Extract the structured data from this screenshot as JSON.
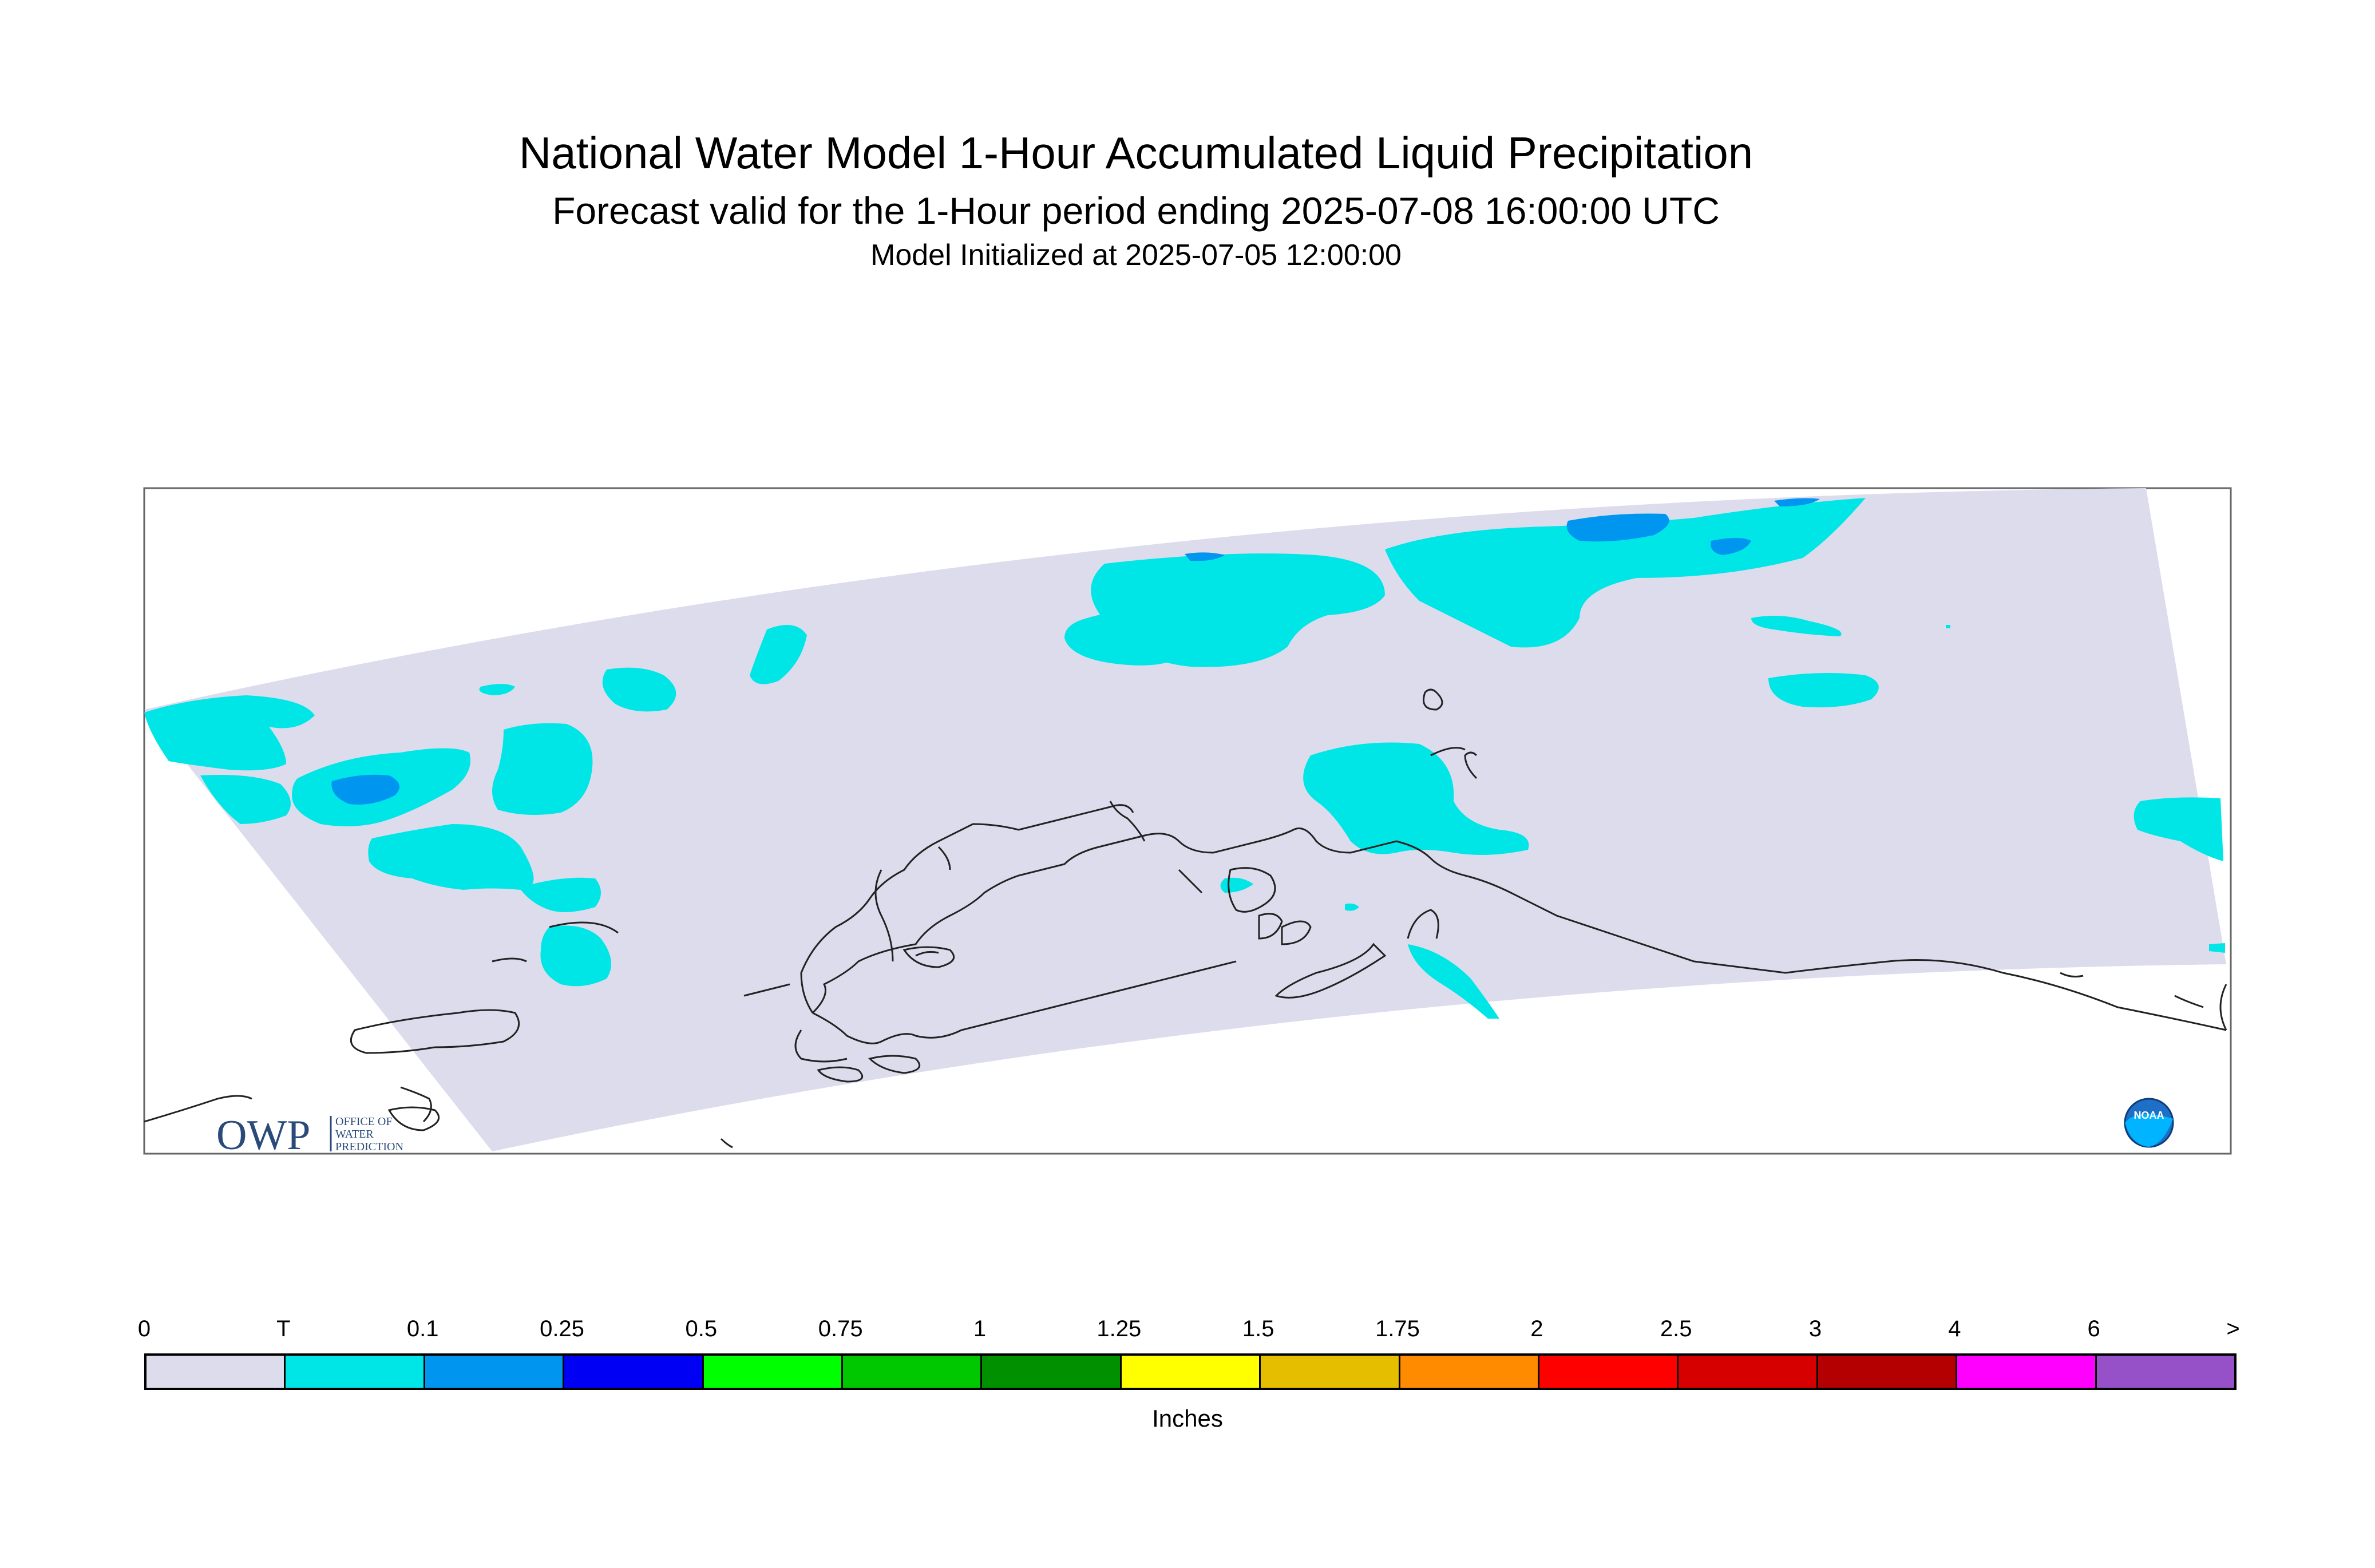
{
  "header": {
    "title": "National Water Model 1-Hour Accumulated Liquid Precipitation",
    "subtitle": "Forecast valid for the 1-Hour period ending 2025-07-08 16:00:00 UTC",
    "init": "Model Initialized at 2025-07-05 12:00:00"
  },
  "logos": {
    "owp": "OWP",
    "owp_line1": "OFFICE OF",
    "owp_line2": "WATER",
    "owp_line3": "PREDICTION",
    "noaa": "NOAA"
  },
  "legend": {
    "units": "Inches",
    "labels": [
      "0",
      "T",
      "0.1",
      "0.25",
      "0.5",
      "0.75",
      "1",
      "1.25",
      "1.5",
      "1.75",
      "2",
      "2.5",
      "3",
      "4",
      "6",
      ">"
    ],
    "colors": [
      "#dcdced",
      "#00e6e6",
      "#0096f0",
      "#0000f5",
      "#00ff00",
      "#00c800",
      "#009000",
      "#ffff00",
      "#e6be00",
      "#ff8c00",
      "#ff0000",
      "#d70000",
      "#b40000",
      "#ff00ff",
      "#9650c8"
    ]
  }
}
